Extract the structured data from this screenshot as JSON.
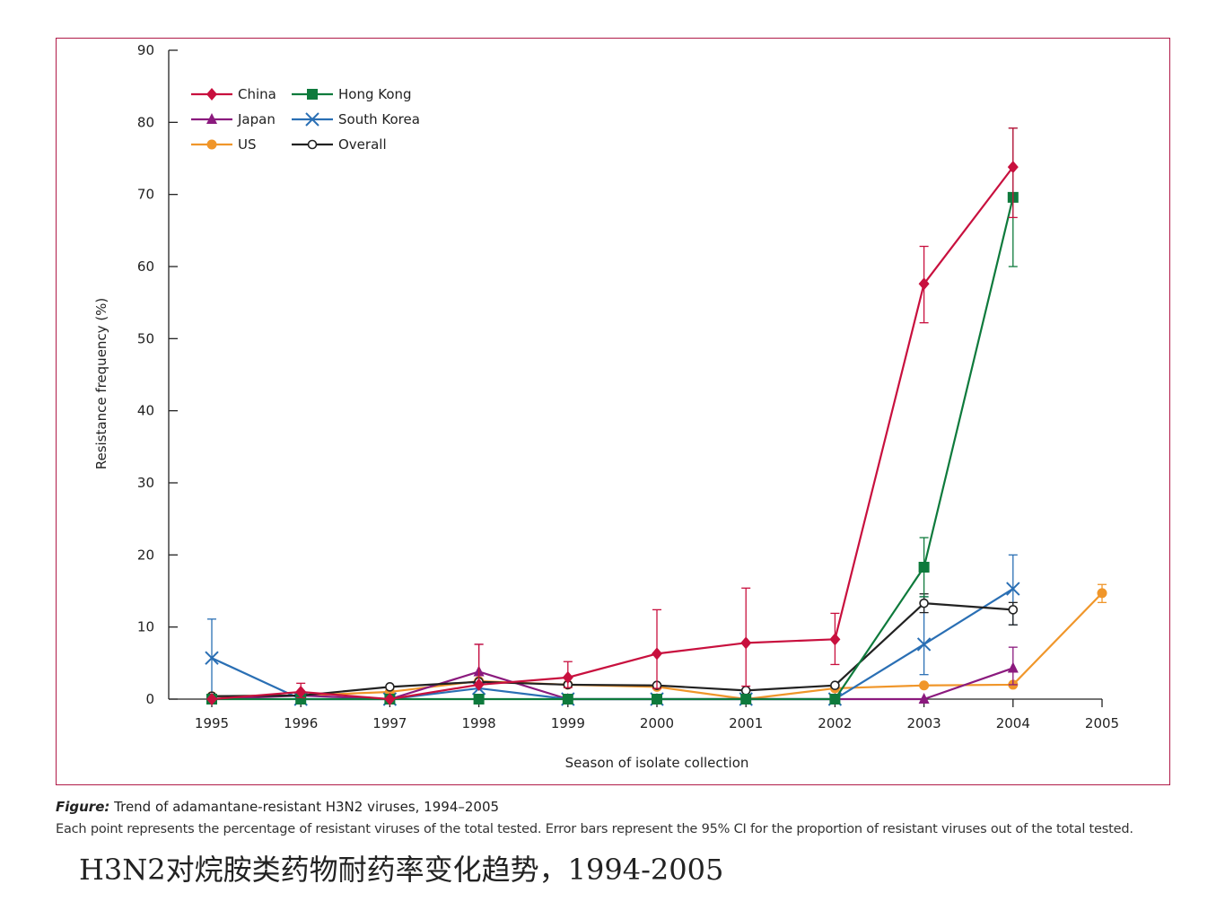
{
  "chart_data": {
    "type": "line",
    "ylabel": "Resistance frequency (%)",
    "xlabel": "Season of isolate collection",
    "ylim": [
      0,
      90
    ],
    "yticks": [
      0,
      10,
      20,
      30,
      40,
      50,
      60,
      70,
      80,
      90
    ],
    "x": [
      1995,
      1996,
      1997,
      1998,
      1999,
      2000,
      2001,
      2002,
      2003,
      2004,
      2005
    ],
    "x_tick_labels": [
      "1995",
      "1996",
      "1997",
      "1998",
      "1999",
      "2000",
      "2001",
      "2002",
      "2003",
      "2004",
      "2005"
    ],
    "series": [
      {
        "name": "China",
        "color": "#c8103e",
        "marker": "diamond",
        "x": [
          1995,
          1996,
          1997,
          1998,
          1999,
          2000,
          2001,
          2002,
          2003,
          2004
        ],
        "values": [
          0,
          1,
          0,
          2,
          3,
          6.3,
          7.8,
          8.3,
          57.6,
          73.8
        ],
        "ci_low": [
          null,
          0.2,
          null,
          null,
          1.6,
          1.5,
          1.8,
          4.8,
          52.2,
          66.8
        ],
        "ci_high": [
          null,
          2.2,
          null,
          7.6,
          5.2,
          12.4,
          15.4,
          11.9,
          62.8,
          79.2
        ]
      },
      {
        "name": "Hong Kong",
        "color": "#0e7a3c",
        "marker": "square",
        "x": [
          1995,
          1996,
          1997,
          1998,
          1999,
          2000,
          2001,
          2002,
          2003,
          2004
        ],
        "values": [
          0,
          0,
          0,
          0,
          0,
          0,
          0,
          0,
          18.3,
          69.6
        ],
        "ci_low": [
          null,
          null,
          null,
          null,
          null,
          null,
          null,
          null,
          14.2,
          60.0
        ],
        "ci_high": [
          null,
          null,
          null,
          null,
          null,
          null,
          null,
          null,
          22.4,
          79.2
        ]
      },
      {
        "name": "Japan",
        "color": "#8b1a7e",
        "marker": "triangle",
        "x": [
          1995,
          1996,
          1997,
          1998,
          1999,
          2000,
          2001,
          2002,
          2003,
          2004
        ],
        "values": [
          0,
          0.5,
          0,
          3.8,
          0,
          0,
          0,
          0,
          0,
          4.3
        ],
        "ci_low": [
          null,
          null,
          null,
          null,
          null,
          null,
          null,
          null,
          null,
          2.0
        ],
        "ci_high": [
          null,
          null,
          null,
          7.6,
          null,
          null,
          null,
          null,
          null,
          7.2
        ]
      },
      {
        "name": "South Korea",
        "color": "#2a6fb4",
        "marker": "x",
        "x": [
          1995,
          1996,
          1997,
          1998,
          1999,
          2000,
          2001,
          2002,
          2003,
          2004
        ],
        "values": [
          5.7,
          0,
          0,
          1.5,
          0,
          0,
          0,
          0,
          7.6,
          15.3
        ],
        "ci_low": [
          0.2,
          null,
          null,
          null,
          null,
          null,
          null,
          null,
          3.4,
          10.3
        ],
        "ci_high": [
          11.1,
          null,
          null,
          null,
          null,
          null,
          null,
          null,
          14.2,
          20.0
        ]
      },
      {
        "name": "US",
        "color": "#f0962a",
        "marker": "circle",
        "x": [
          1995,
          1996,
          1997,
          1998,
          1999,
          2000,
          2001,
          2002,
          2003,
          2004,
          2005
        ],
        "values": [
          0.4,
          0.5,
          1,
          2.5,
          2,
          1.7,
          0,
          1.5,
          1.9,
          2.0,
          14.7
        ],
        "ci_low": [
          null,
          null,
          null,
          null,
          null,
          null,
          null,
          null,
          null,
          null,
          13.4
        ],
        "ci_high": [
          null,
          null,
          null,
          null,
          null,
          null,
          null,
          null,
          null,
          null,
          15.9
        ]
      },
      {
        "name": "Overall",
        "color": "#222222",
        "marker": "open-circle",
        "x": [
          1995,
          1996,
          1997,
          1998,
          1999,
          2000,
          2001,
          2002,
          2003,
          2004
        ],
        "values": [
          0.4,
          0.5,
          1.7,
          2.4,
          2.0,
          1.9,
          1.2,
          1.9,
          13.3,
          12.4
        ],
        "ci_low": [
          null,
          null,
          null,
          null,
          null,
          null,
          null,
          null,
          12.0,
          10.3
        ],
        "ci_high": [
          null,
          null,
          null,
          null,
          null,
          null,
          null,
          null,
          14.6,
          13.4
        ]
      }
    ],
    "legend": [
      "China",
      "Hong Kong",
      "Japan",
      "South Korea",
      "US",
      "Overall"
    ],
    "legend_position": "top-left"
  },
  "caption": {
    "figure_prefix": "Figure:",
    "title": " Trend of adamantane-resistant H3N2 viruses, 1994–2005",
    "body": "Each point represents the percentage of resistant viruses of the total tested. Error bars represent the 95% CI for the proportion of resistant viruses out of the total tested."
  },
  "chinese_title": "H3N2对烷胺类药物耐药率变化趋势，1994-2005"
}
